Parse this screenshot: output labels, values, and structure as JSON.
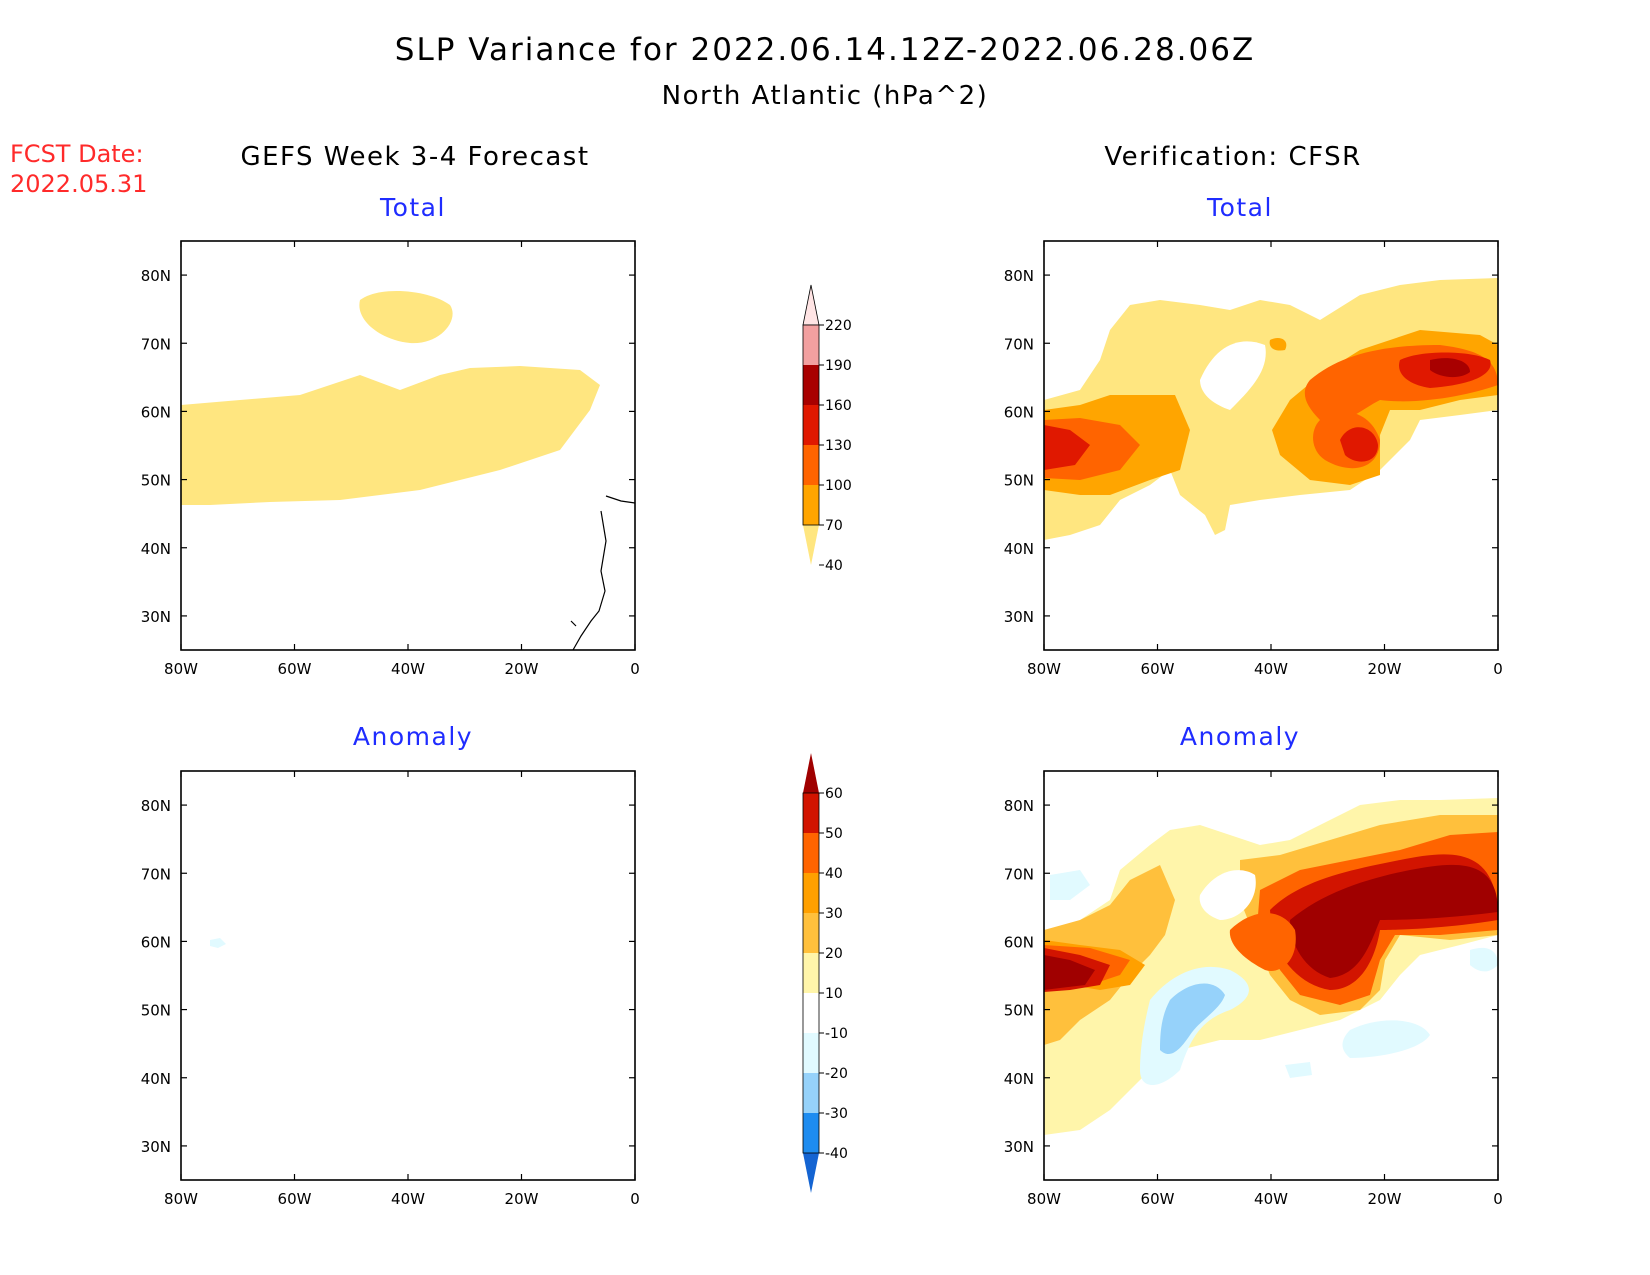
{
  "figure": {
    "title": "SLP Variance for 2022.06.14.12Z-2022.06.28.06Z",
    "subtitle": "North Atlantic (hPa^2)",
    "fcst_date_label": "FCST Date:",
    "fcst_date_value": "2022.05.31",
    "left_heading": "GEFS Week 3-4 Forecast",
    "right_heading": "Verification: CFSR"
  },
  "panels": [
    {
      "id": "fc_total",
      "title": "Total"
    },
    {
      "id": "vf_total",
      "title": "Total"
    },
    {
      "id": "fc_anom",
      "title": "Anomaly"
    },
    {
      "id": "vf_anom",
      "title": "Anomaly"
    }
  ],
  "axes": {
    "lon_ticks": [
      "80W",
      "60W",
      "40W",
      "20W",
      "0"
    ],
    "lat_ticks": [
      "80N",
      "70N",
      "60N",
      "50N",
      "40N",
      "30N"
    ],
    "lon_values": [
      -80,
      -60,
      -40,
      -20,
      0
    ],
    "lat_values": [
      80,
      70,
      60,
      50,
      40,
      30
    ],
    "lon_range": [
      -80,
      0
    ],
    "lat_range": [
      25,
      85
    ]
  },
  "colorbars": {
    "total": {
      "labels": [
        "40",
        "70",
        "100",
        "130",
        "160",
        "190",
        "220"
      ],
      "colors": [
        "#ffe680",
        "#ffa500",
        "#ff6400",
        "#e01800",
        "#a80000",
        "#f2a0a0",
        "#ffe4e4"
      ]
    },
    "anomaly": {
      "labels": [
        "-40",
        "-30",
        "-20",
        "-10",
        "10",
        "20",
        "30",
        "40",
        "50",
        "60"
      ],
      "colors": [
        "#1464d2",
        "#1e8cf0",
        "#96d2fa",
        "#e1faff",
        "#ffffff",
        "#fff5aa",
        "#ffc03c",
        "#ffa000",
        "#ff6400",
        "#d21400",
        "#a00000"
      ]
    }
  },
  "chart_data": [
    {
      "type": "heatmap",
      "title": "Total",
      "group": "GEFS Week 3-4 Forecast",
      "units": "hPa^2",
      "regions": [
        {
          "desc": "band across Labrador Sea to central Atlantic",
          "lon_range": [
            -80,
            -5
          ],
          "lat_range": [
            47,
            63
          ],
          "value_range": [
            40,
            70
          ]
        },
        {
          "desc": "patch over central Greenland",
          "lon_range": [
            -40,
            -25
          ],
          "lat_range": [
            72,
            77
          ],
          "value_range": [
            40,
            70
          ]
        }
      ]
    },
    {
      "type": "heatmap",
      "title": "Total",
      "group": "Verification: CFSR",
      "units": "hPa^2",
      "regions": [
        {
          "desc": "max near Hudson Bay / Quebec",
          "center": [
            -78,
            56
          ],
          "value_range": [
            130,
            160
          ]
        },
        {
          "desc": "max SW of Iceland",
          "center": [
            -27,
            56
          ],
          "value_range": [
            130,
            160
          ]
        },
        {
          "desc": "max NE of Iceland",
          "center": [
            -10,
            66
          ],
          "value_range": [
            160,
            190
          ]
        },
        {
          "desc": "broad field",
          "lon_range": [
            -80,
            0
          ],
          "lat_range": [
            44,
            80
          ],
          "value_range": [
            40,
            100
          ]
        }
      ]
    },
    {
      "type": "heatmap",
      "title": "Anomaly",
      "group": "GEFS Week 3-4 Forecast",
      "units": "hPa^2",
      "regions": [
        {
          "desc": "near-zero everywhere; tiny weak negative patch",
          "center": [
            -73,
            60
          ],
          "value_range": [
            -20,
            -10
          ]
        }
      ]
    },
    {
      "type": "heatmap",
      "title": "Anomaly",
      "group": "Verification: CFSR",
      "units": "hPa^2",
      "regions": [
        {
          "desc": "positive max over Quebec",
          "center": [
            -76,
            55
          ],
          "value_range": [
            50,
            60
          ]
        },
        {
          "desc": "positive max SW of Iceland",
          "center": [
            -26,
            56
          ],
          "value_range": [
            50,
            60
          ]
        },
        {
          "desc": "positive max NE of Iceland",
          "center": [
            -8,
            67
          ],
          "value_range": [
            50,
            60
          ]
        },
        {
          "desc": "negative over Newfoundland / Labrador Sea",
          "center": [
            -48,
            51
          ],
          "value_range": [
            -30,
            -20
          ]
        },
        {
          "desc": "weak negative east Atlantic",
          "center": [
            -15,
            46
          ],
          "value_range": [
            -20,
            -10
          ]
        }
      ]
    }
  ]
}
